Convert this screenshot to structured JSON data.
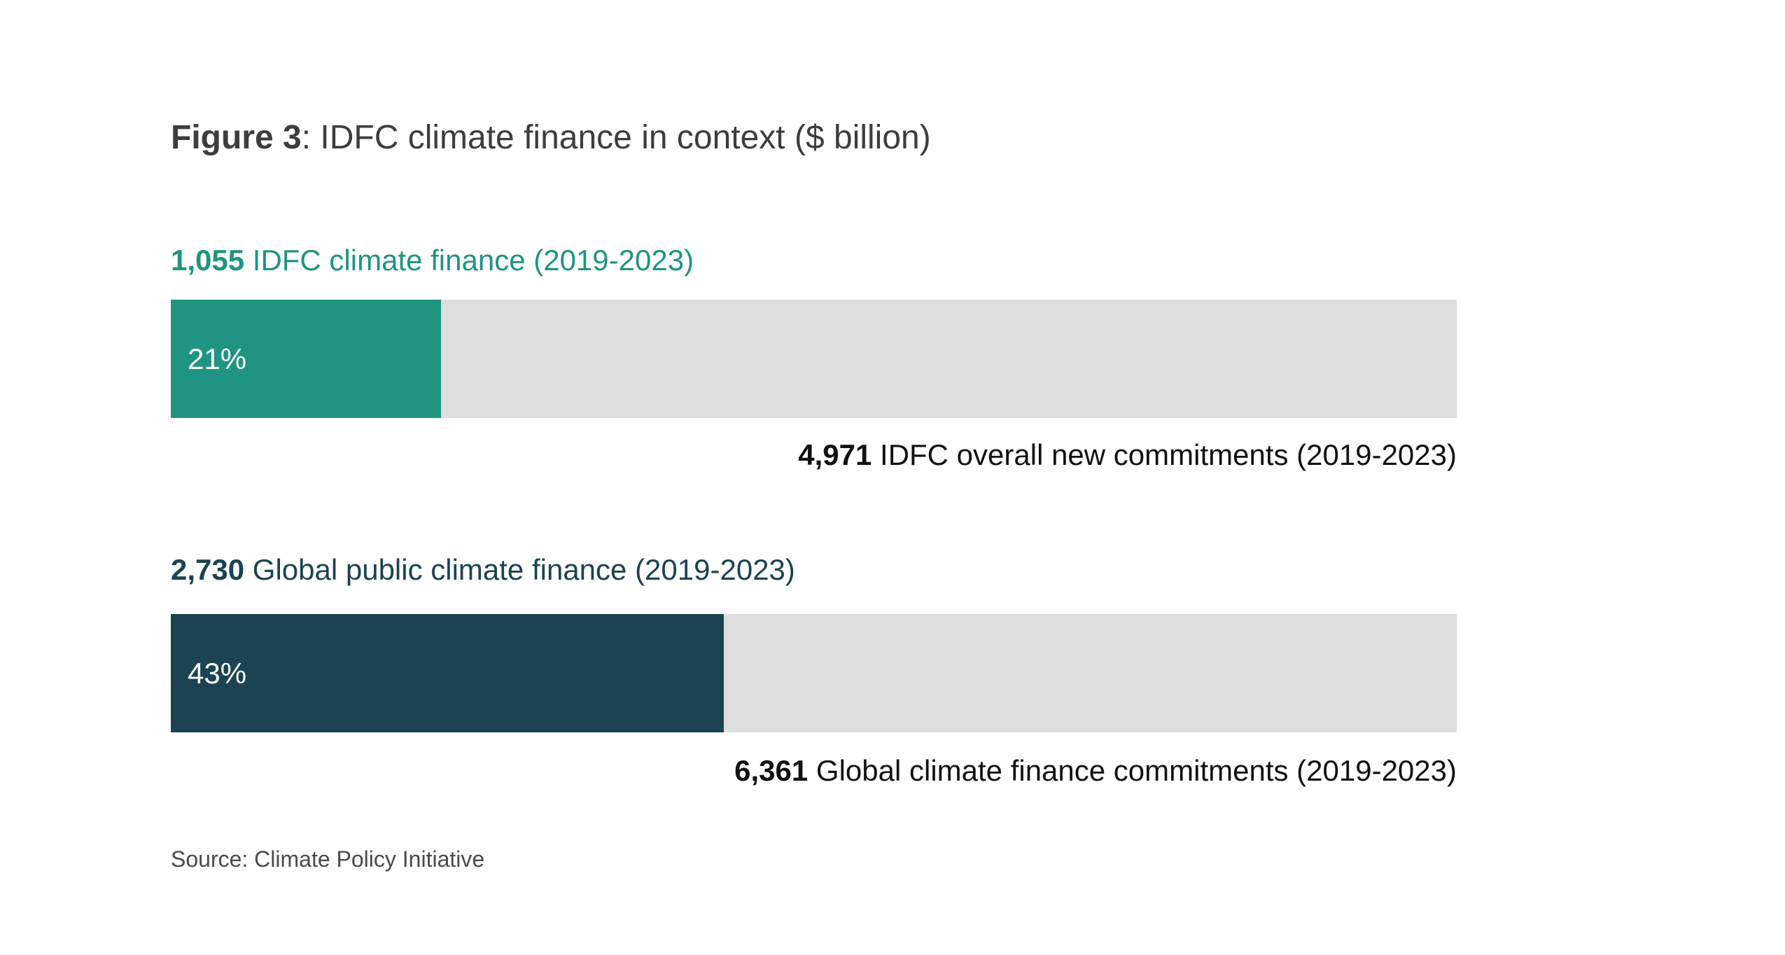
{
  "title": {
    "prefix": "Figure 3",
    "text": ": IDFC climate finance in context ($ billion)"
  },
  "chart_data": {
    "type": "bar",
    "title": "Figure 3: IDFC climate finance in context ($ billion)",
    "bars": [
      {
        "part_value": "1,055",
        "part_label": " IDFC climate finance (2019-2023)",
        "percent_label": "21%",
        "fraction": 0.21,
        "total_value": "4,971",
        "total_label": " IDFC overall new commitments (2019-2023)",
        "color": "#1f9480",
        "label_color": "#1f9480"
      },
      {
        "part_value": "2,730",
        "part_label": " Global public climate finance (2019-2023)",
        "percent_label": "43%",
        "fraction": 0.43,
        "total_value": "6,361",
        "total_label": " Global climate finance commitments (2019-2023)",
        "color": "#1b4351",
        "label_color": "#1b4351"
      }
    ],
    "track_color": "#dedede"
  },
  "source": "Source: Climate Policy Initiative"
}
